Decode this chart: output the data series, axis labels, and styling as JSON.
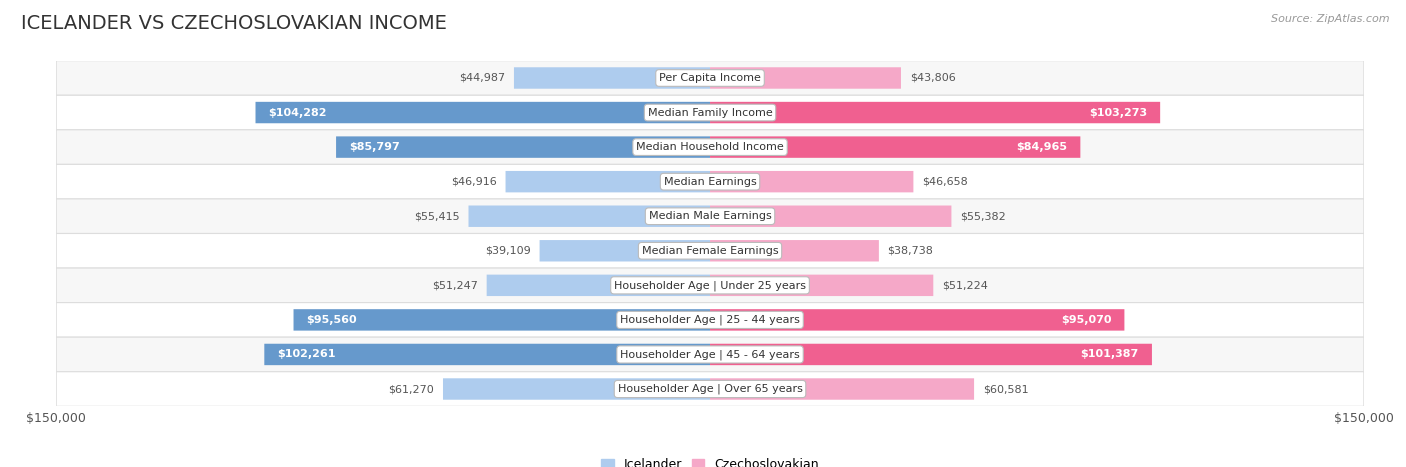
{
  "title": "ICELANDER VS CZECHOSLOVAKIAN INCOME",
  "source": "Source: ZipAtlas.com",
  "categories": [
    "Per Capita Income",
    "Median Family Income",
    "Median Household Income",
    "Median Earnings",
    "Median Male Earnings",
    "Median Female Earnings",
    "Householder Age | Under 25 years",
    "Householder Age | 25 - 44 years",
    "Householder Age | 45 - 64 years",
    "Householder Age | Over 65 years"
  ],
  "icelander_values": [
    44987,
    104282,
    85797,
    46916,
    55415,
    39109,
    51247,
    95560,
    102261,
    61270
  ],
  "czechoslovakian_values": [
    43806,
    103273,
    84965,
    46658,
    55382,
    38738,
    51224,
    95070,
    101387,
    60581
  ],
  "icelander_labels": [
    "$44,987",
    "$104,282",
    "$85,797",
    "$46,916",
    "$55,415",
    "$39,109",
    "$51,247",
    "$95,560",
    "$102,261",
    "$61,270"
  ],
  "czechoslovakian_labels": [
    "$43,806",
    "$103,273",
    "$84,965",
    "$46,658",
    "$55,382",
    "$38,738",
    "$51,224",
    "$95,070",
    "$101,387",
    "$60,581"
  ],
  "icelander_color_light": "#aeccee",
  "icelander_color_dark": "#6699cc",
  "czechoslovakian_color_light": "#f5a8c8",
  "czechoslovakian_color_dark": "#f06090",
  "max_value": 150000,
  "label_threshold": 75000,
  "title_fontsize": 14,
  "source_fontsize": 8,
  "axis_label_fontsize": 9,
  "bar_label_fontsize": 8,
  "category_fontsize": 8
}
